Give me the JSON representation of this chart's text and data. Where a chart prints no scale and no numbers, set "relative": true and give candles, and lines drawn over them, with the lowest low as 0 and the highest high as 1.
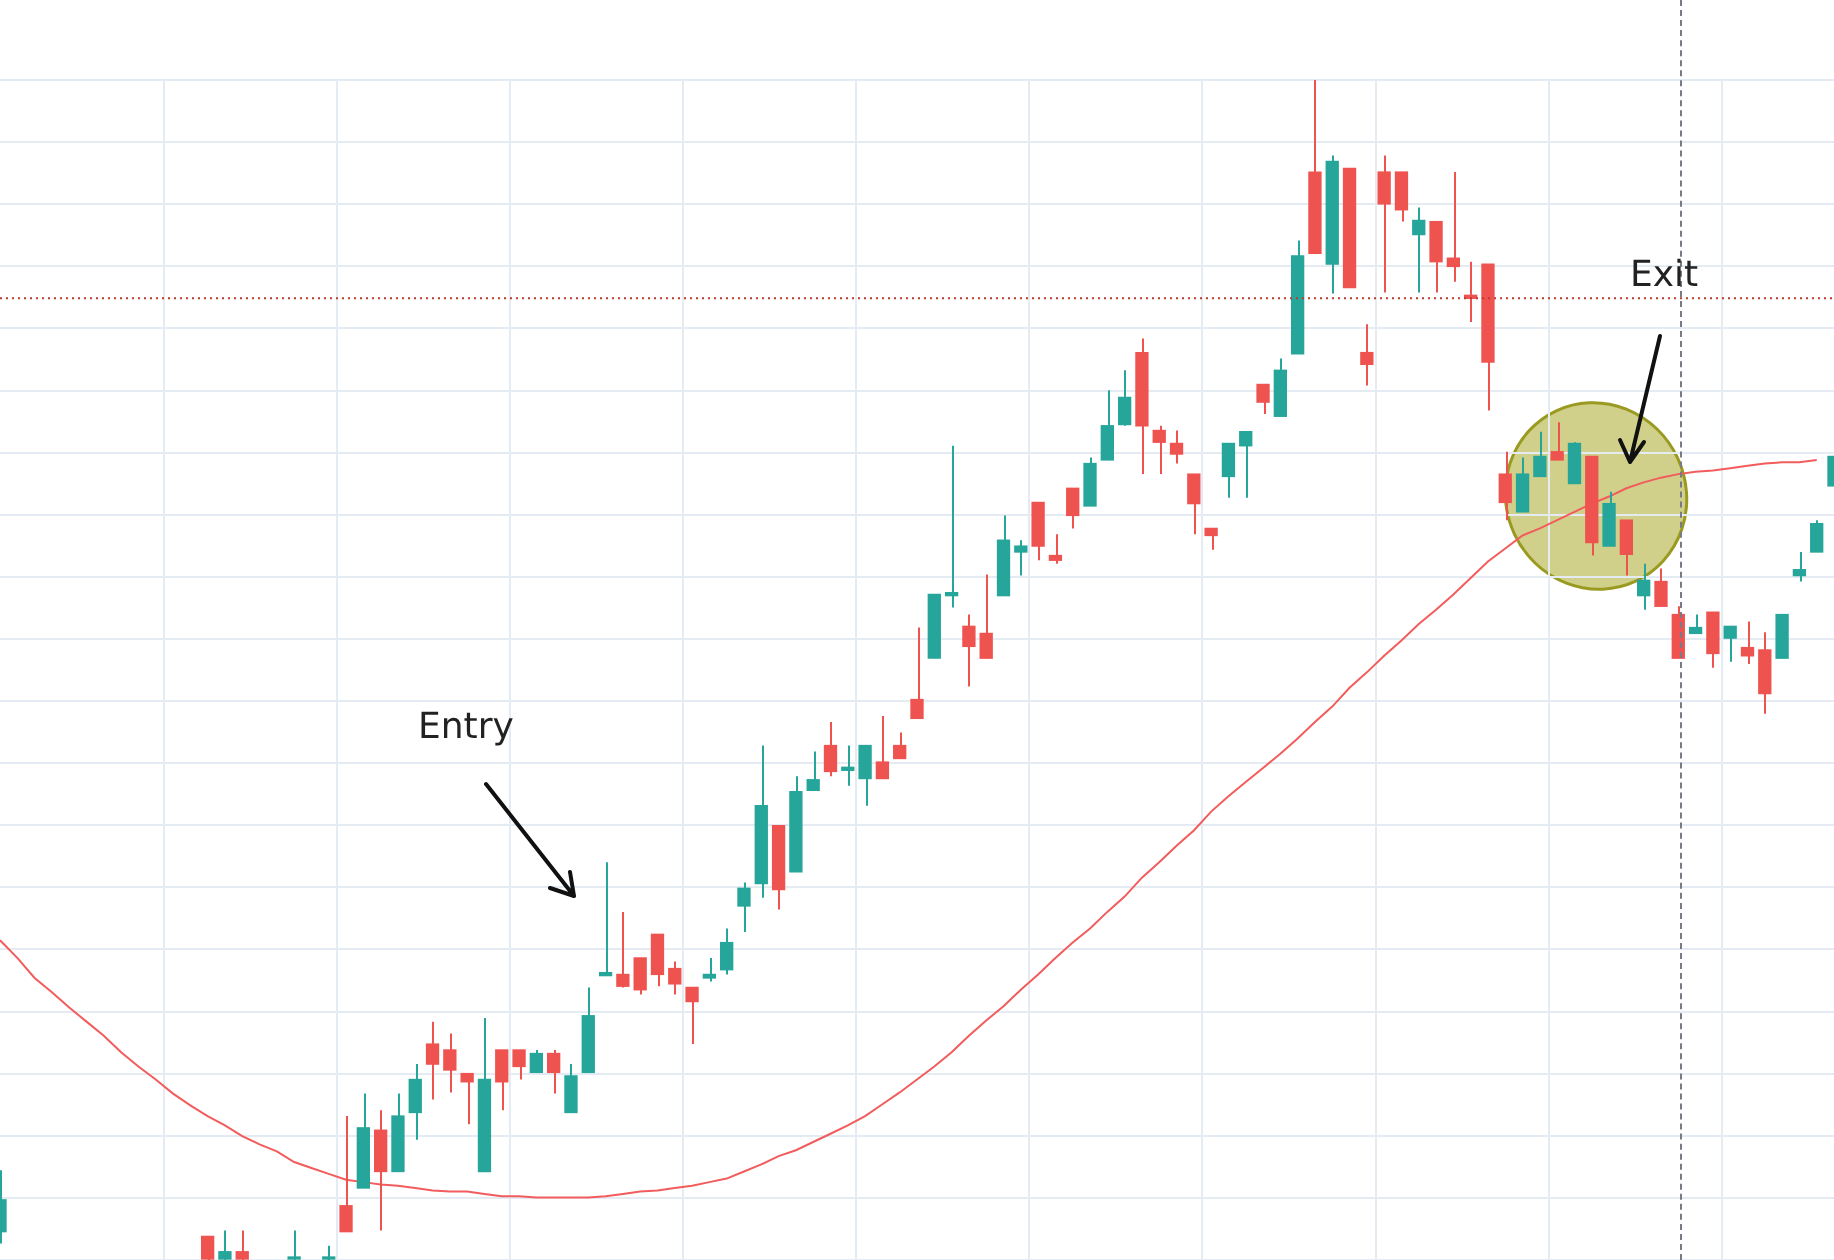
{
  "chart_data": {
    "type": "candlestick",
    "relative": true,
    "tick_labels": false,
    "grid": true,
    "categories": [
      null,
      null,
      null,
      null,
      null,
      null,
      null,
      null,
      null,
      null,
      null,
      null,
      null,
      null,
      null,
      null,
      null,
      null,
      null,
      null,
      null,
      null,
      null,
      null,
      null,
      null,
      null,
      null,
      null,
      null,
      null,
      null,
      null,
      null,
      null,
      null,
      null,
      null,
      null,
      null,
      null,
      null,
      null,
      null,
      null,
      null,
      null,
      null,
      null,
      null,
      null,
      null,
      null,
      null,
      null,
      null,
      null,
      null,
      null,
      null,
      null,
      null,
      null,
      null,
      null,
      null,
      null,
      null,
      null,
      null,
      null,
      null,
      null,
      null,
      null,
      null,
      null,
      null,
      null,
      null,
      null,
      null,
      null,
      null,
      null,
      null,
      null,
      null,
      null,
      null,
      null,
      null,
      null,
      null,
      null,
      null,
      null,
      null,
      null,
      null,
      null,
      null,
      null,
      null,
      null,
      null,
      null
    ],
    "ohlc": [
      [
        0.024,
        0.076,
        0.014,
        0.051
      ],
      null,
      null,
      null,
      null,
      null,
      null,
      null,
      null,
      null,
      null,
      null,
      [
        0.02,
        0.02,
        0,
        0
      ],
      [
        0,
        0.025,
        0,
        0.007
      ],
      [
        0.007,
        0.025,
        0,
        0
      ],
      null,
      null,
      [
        0,
        0.025,
        0,
        0
      ],
      null,
      [
        0,
        0.012,
        0,
        0
      ],
      [
        0.046,
        0.122,
        0.024,
        0.024
      ],
      [
        0.061,
        0.141,
        0.061,
        0.112
      ],
      [
        0.11,
        0.127,
        0.025,
        0.075
      ],
      [
        0.075,
        0.141,
        0.075,
        0.122
      ],
      [
        0.125,
        0.166,
        0.102,
        0.153
      ],
      [
        0.183,
        0.202,
        0.136,
        0.166
      ],
      [
        0.178,
        0.192,
        0.142,
        0.161
      ],
      [
        0.158,
        0.158,
        0.115,
        0.151
      ],
      [
        0.075,
        0.205,
        0.075,
        0.153
      ],
      [
        0.178,
        0.178,
        0.127,
        0.151
      ],
      [
        0.178,
        0.178,
        0.153,
        0.164
      ],
      [
        0.159,
        0.178,
        0.159,
        0.175
      ],
      [
        0.175,
        0.178,
        0.141,
        0.159
      ],
      [
        0.125,
        0.166,
        0.125,
        0.156
      ],
      [
        0.159,
        0.231,
        0.159,
        0.207
      ],
      [
        0.241,
        0.337,
        0.241,
        0.242
      ],
      [
        0.242,
        0.295,
        0.231,
        0.232
      ],
      [
        0.256,
        0.256,
        0.225,
        0.229
      ],
      [
        0.276,
        0.276,
        0.232,
        0.242
      ],
      [
        0.247,
        0.253,
        0.225,
        0.234
      ],
      [
        0.231,
        0.231,
        0.183,
        0.219
      ],
      [
        0.239,
        0.256,
        0.236,
        0.242
      ],
      [
        0.246,
        0.281,
        0.242,
        0.269
      ],
      [
        0.3,
        0.32,
        0.278,
        0.315
      ],
      [
        0.319,
        0.436,
        0.307,
        0.385
      ],
      [
        0.368,
        0.368,
        0.297,
        0.314
      ],
      [
        0.329,
        0.41,
        0.329,
        0.397
      ],
      [
        0.398,
        0.431,
        0.398,
        0.407
      ],
      [
        0.436,
        0.456,
        0.41,
        0.414
      ],
      [
        0.415,
        0.436,
        0.402,
        0.417
      ],
      [
        0.408,
        0.436,
        0.385,
        0.436
      ],
      [
        0.422,
        0.461,
        0.408,
        0.408
      ],
      [
        0.436,
        0.447,
        0.425,
        0.425
      ],
      [
        0.475,
        0.536,
        0.459,
        0.459
      ],
      [
        0.51,
        0.564,
        0.51,
        0.564
      ],
      [
        0.563,
        0.69,
        0.553,
        0.564
      ],
      [
        0.537,
        0.547,
        0.486,
        0.52
      ],
      [
        0.531,
        0.581,
        0.51,
        0.51
      ],
      [
        0.563,
        0.631,
        0.563,
        0.61
      ],
      [
        0.6,
        0.61,
        0.58,
        0.605
      ],
      [
        0.642,
        0.642,
        0.593,
        0.605
      ],
      [
        0.597,
        0.615,
        0.59,
        0.593
      ],
      [
        0.654,
        0.654,
        0.62,
        0.631
      ],
      [
        0.639,
        0.68,
        0.639,
        0.675
      ],
      [
        0.678,
        0.737,
        0.678,
        0.707
      ],
      [
        0.708,
        0.754,
        0.707,
        0.731
      ],
      [
        0.769,
        0.781,
        0.666,
        0.707
      ],
      [
        0.703,
        0.707,
        0.666,
        0.693
      ],
      [
        0.692,
        0.703,
        0.675,
        0.683
      ],
      [
        0.666,
        0.666,
        0.615,
        0.641
      ],
      [
        0.62,
        0.62,
        0.602,
        0.614
      ],
      [
        0.664,
        0.692,
        0.646,
        0.692
      ],
      [
        0.69,
        0.702,
        0.646,
        0.702
      ],
      [
        0.742,
        0.742,
        0.717,
        0.727
      ],
      [
        0.715,
        0.764,
        0.715,
        0.754
      ],
      [
        0.768,
        0.864,
        0.768,
        0.851
      ],
      [
        0.922,
        1,
        0.853,
        0.853
      ],
      [
        0.844,
        0.936,
        0.819,
        0.931
      ],
      [
        0.925,
        0.925,
        0.824,
        0.824
      ],
      [
        0.769,
        0.793,
        0.741,
        0.759
      ],
      [
        0.922,
        0.936,
        0.82,
        0.895
      ],
      [
        0.922,
        0.922,
        0.88,
        0.89
      ],
      [
        0.869,
        0.892,
        0.82,
        0.881
      ],
      [
        0.88,
        0.88,
        0.82,
        0.846
      ],
      [
        0.849,
        0.922,
        0.829,
        0.842
      ],
      [
        0.817,
        0.846,
        0.795,
        0.815
      ],
      [
        0.844,
        0.844,
        0.72,
        0.761
      ],
      [
        0.666,
        0.685,
        0.627,
        0.642
      ],
      [
        0.634,
        0.68,
        0.634,
        0.666
      ],
      [
        0.664,
        0.702,
        0.664,
        0.681
      ],
      [
        0.685,
        0.71,
        0.678,
        0.678
      ],
      [
        0.658,
        0.693,
        0.658,
        0.692
      ],
      [
        0.681,
        0.681,
        0.597,
        0.608
      ],
      [
        0.605,
        0.651,
        0.605,
        0.641
      ],
      [
        0.627,
        0.627,
        0.58,
        0.598
      ],
      [
        0.563,
        0.59,
        0.551,
        0.576
      ],
      [
        0.575,
        0.586,
        0.554,
        0.554
      ],
      [
        0.547,
        0.554,
        0.51,
        0.51
      ],
      [
        0.531,
        0.547,
        0.531,
        0.536
      ],
      [
        0.549,
        0.549,
        0.502,
        0.514
      ],
      [
        0.527,
        0.537,
        0.507,
        0.537
      ],
      [
        0.519,
        0.541,
        0.505,
        0.512
      ],
      [
        0.517,
        0.532,
        0.463,
        0.48
      ],
      [
        0.51,
        0.547,
        0.51,
        0.547
      ],
      [
        0.58,
        0.6,
        0.575,
        0.585
      ],
      [
        0.6,
        0.627,
        0.6,
        0.624
      ],
      [
        0.656,
        0.681,
        0.656,
        0.681
      ]
    ],
    "colors": [
      "#26a69a",
      null,
      null,
      null,
      null,
      null,
      null,
      null,
      null,
      null,
      null,
      null,
      "#ef5350",
      "#26a69a",
      "#ef5350",
      null,
      null,
      "#26a69a",
      null,
      "#26a69a",
      "#ef5350",
      "#26a69a",
      "#ef5350",
      "#26a69a",
      "#26a69a",
      "#ef5350",
      "#ef5350",
      "#ef5350",
      "#26a69a",
      "#ef5350",
      "#ef5350",
      "#26a69a",
      "#ef5350",
      "#26a69a",
      "#26a69a",
      "#26a69a",
      "#ef5350",
      "#ef5350",
      "#ef5350",
      "#ef5350",
      "#ef5350",
      "#26a69a",
      "#26a69a",
      "#26a69a",
      "#26a69a",
      "#ef5350",
      "#26a69a",
      "#26a69a",
      "#ef5350",
      "#26a69a",
      "#26a69a",
      "#ef5350",
      "#ef5350",
      "#ef5350",
      "#26a69a",
      "#26a69a",
      "#ef5350",
      "#ef5350",
      "#26a69a",
      "#26a69a",
      "#ef5350",
      "#ef5350",
      "#ef5350",
      "#26a69a",
      "#26a69a",
      "#26a69a",
      "#ef5350",
      "#ef5350",
      "#ef5350",
      "#ef5350",
      "#ef5350",
      "#26a69a",
      "#26a69a",
      "#ef5350",
      "#26a69a",
      "#26a69a",
      "#ef5350",
      "#26a69a",
      "#ef5350",
      "#ef5350",
      "#ef5350",
      "#ef5350",
      "#26a69a",
      "#ef5350",
      "#ef5350",
      "#ef5350",
      "#ef5350",
      "#ef5350",
      "#26a69a",
      "#26a69a",
      "#ef5350",
      "#26a69a",
      "#ef5350",
      "#26a69a",
      "#ef5350",
      "#26a69a",
      "#ef5350",
      "#ef5350",
      "#26a69a",
      "#ef5350",
      "#26a69a",
      "#ef5350",
      "#ef5350",
      "#26a69a",
      "#26a69a",
      "#26a69a",
      "#26a69a"
    ],
    "series": [
      {
        "type": "line",
        "color": "#f25c5c",
        "values": [
          0.271,
          0.256,
          0.239,
          0.227,
          0.214,
          0.202,
          0.19,
          0.176,
          0.164,
          0.153,
          0.141,
          0.131,
          0.122,
          0.114,
          0.105,
          0.098,
          0.092,
          0.083,
          0.078,
          0.073,
          0.068,
          0.066,
          0.064,
          0.063,
          0.061,
          0.059,
          0.058,
          0.058,
          0.056,
          0.054,
          0.054,
          0.053,
          0.053,
          0.053,
          0.053,
          0.054,
          0.056,
          0.058,
          0.059,
          0.061,
          0.063,
          0.066,
          0.069,
          0.075,
          0.081,
          0.088,
          0.093,
          0.1,
          0.107,
          0.114,
          0.122,
          0.132,
          0.142,
          0.153,
          0.164,
          0.176,
          0.19,
          0.203,
          0.215,
          0.229,
          0.242,
          0.256,
          0.269,
          0.281,
          0.295,
          0.308,
          0.324,
          0.337,
          0.351,
          0.364,
          0.38,
          0.393,
          0.405,
          0.417,
          0.429,
          0.442,
          0.456,
          0.469,
          0.485,
          0.498,
          0.512,
          0.525,
          0.539,
          0.551,
          0.564,
          0.578,
          0.592,
          0.603,
          0.614,
          0.62,
          0.627,
          0.634,
          0.641,
          0.647,
          0.654,
          0.659,
          0.663,
          0.666,
          0.668,
          0.669,
          0.671,
          0.673,
          0.675,
          0.676,
          0.676,
          0.678,
          null
        ]
      }
    ],
    "ref_lines": [
      {
        "axis": "y",
        "value": 0.815,
        "color": "#c0392b",
        "line_style": "dotted"
      }
    ],
    "annotations": [
      "Entry",
      "Exit"
    ]
  }
}
